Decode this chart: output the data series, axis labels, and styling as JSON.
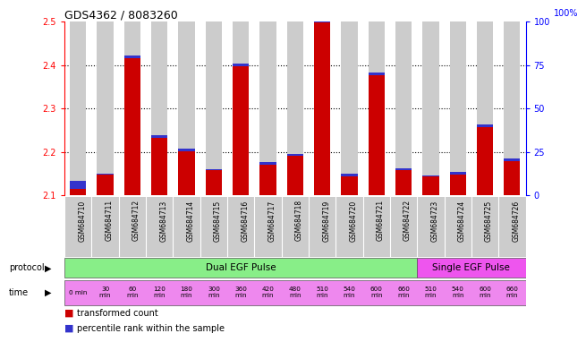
{
  "title": "GDS4362 / 8083260",
  "samples": [
    "GSM684710",
    "GSM684711",
    "GSM684712",
    "GSM684713",
    "GSM684714",
    "GSM684715",
    "GSM684716",
    "GSM684717",
    "GSM684718",
    "GSM684719",
    "GSM684720",
    "GSM684721",
    "GSM684722",
    "GSM684723",
    "GSM684724",
    "GSM684725",
    "GSM684726"
  ],
  "red_values": [
    2.114,
    2.147,
    2.415,
    2.232,
    2.202,
    2.157,
    2.397,
    2.171,
    2.19,
    2.498,
    2.144,
    2.376,
    2.158,
    2.143,
    2.147,
    2.257,
    2.179
  ],
  "blue_values": [
    0.02,
    0.003,
    0.006,
    0.006,
    0.005,
    0.003,
    0.006,
    0.005,
    0.005,
    0.006,
    0.005,
    0.006,
    0.004,
    0.003,
    0.006,
    0.006,
    0.005
  ],
  "ylim_left": [
    2.1,
    2.5
  ],
  "ylim_right": [
    0,
    100
  ],
  "yticks_left": [
    2.1,
    2.2,
    2.3,
    2.4,
    2.5
  ],
  "yticks_right": [
    0,
    25,
    50,
    75,
    100
  ],
  "time_labels": [
    "0 min",
    "30\nmin",
    "60\nmin",
    "120\nmin",
    "180\nmin",
    "300\nmin",
    "360\nmin",
    "420\nmin",
    "480\nmin",
    "510\nmin",
    "540\nmin",
    "600\nmin",
    "660\nmin",
    "510\nmin",
    "540\nmin",
    "600\nmin",
    "660\nmin"
  ],
  "protocol_dual_label": "Dual EGF Pulse",
  "protocol_single_label": "Single EGF Pulse",
  "bar_color_red": "#cc0000",
  "bar_color_blue": "#3333cc",
  "background_color": "#ffffff",
  "bar_bg_color": "#cccccc",
  "protocol_dual_color": "#88ee88",
  "protocol_single_color": "#ee55ee",
  "time_bg_color": "#ee88ee",
  "legend_red": "transformed count",
  "legend_blue": "percentile rank within the sample",
  "grid_dotted_at": [
    2.2,
    2.3,
    2.4
  ]
}
